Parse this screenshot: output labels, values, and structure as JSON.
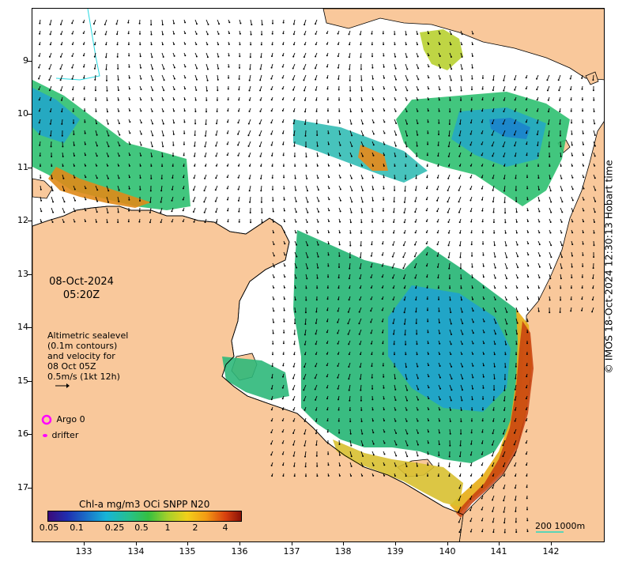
{
  "map": {
    "date": "08-Oct-2024",
    "time": "05:20Z",
    "sealevel_text": [
      "Altimetric sealevel",
      "(0.1m contours)",
      "and velocity for",
      "08 Oct 05Z",
      "0.5m/s (1kt 12h)"
    ],
    "argo_label": "Argo 0",
    "drifter_label": "drifter",
    "credit": "© IMOS 18-Oct-2024 12:30:13 Hobart time",
    "scale_text": "200  1000m",
    "lat_labels": [
      "9",
      "10",
      "11",
      "12",
      "13",
      "14",
      "15",
      "16",
      "17"
    ],
    "lon_labels": [
      "133",
      "134",
      "135",
      "136",
      "137",
      "138",
      "139",
      "140",
      "141",
      "142"
    ],
    "colors": {
      "land": "#f9c89b",
      "ocean": "#ffffff",
      "argo": "#ff00ff",
      "coast": "#000000"
    }
  },
  "colorbar": {
    "title": "Chl-a mg/m3 OCi SNPP N20",
    "ticks": [
      "0.05",
      "0.1",
      "0.25",
      "0.5",
      "1",
      "2",
      "4"
    ]
  }
}
